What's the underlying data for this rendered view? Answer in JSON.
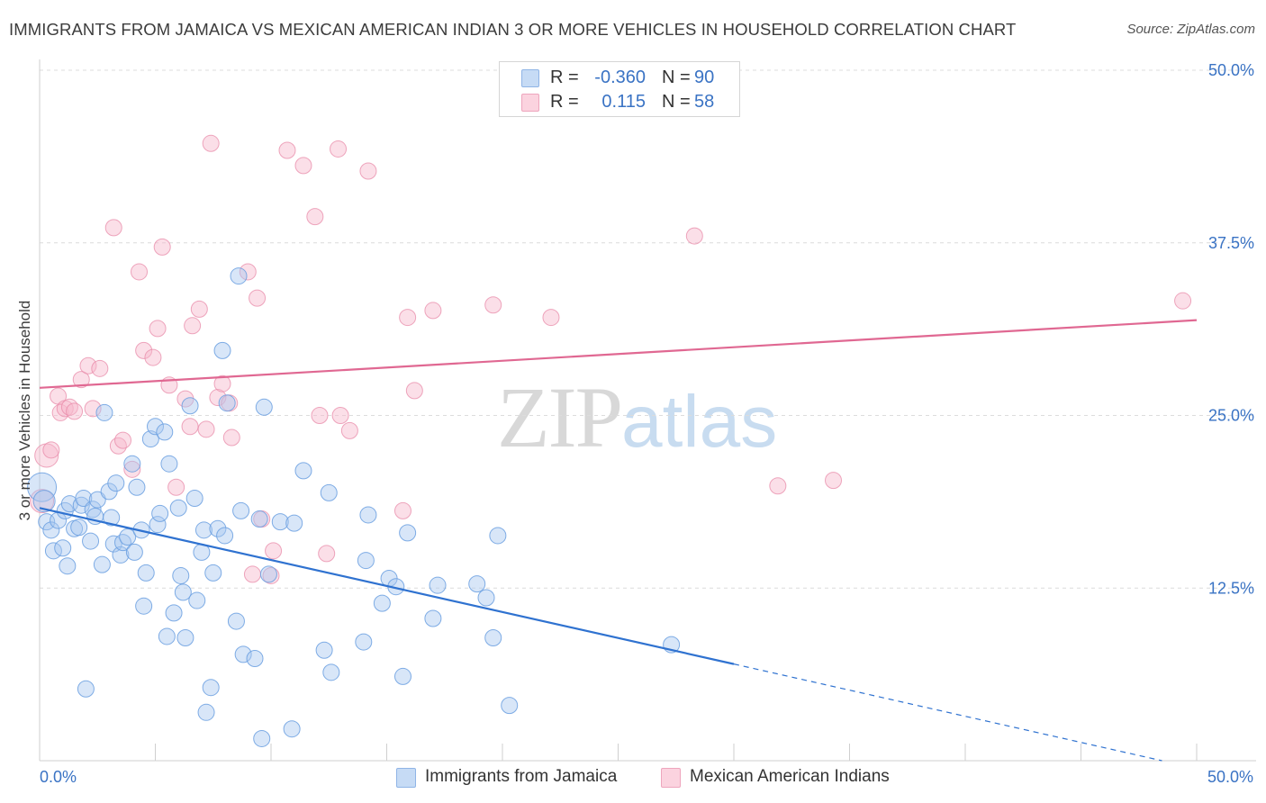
{
  "title": "IMMIGRANTS FROM JAMAICA VS MEXICAN AMERICAN INDIAN 3 OR MORE VEHICLES IN HOUSEHOLD CORRELATION CHART",
  "source": "Source: ZipAtlas.com",
  "watermark": {
    "zip": "ZIP",
    "atlas": "atlas"
  },
  "legend": {
    "rows": [
      {
        "r_label": "R =",
        "r_value": "-0.360",
        "n_label": "N =",
        "n_value": "90",
        "color": "#a9c8f0"
      },
      {
        "r_label": "R =",
        "r_value": "0.115",
        "n_label": "N =",
        "n_value": "58",
        "color": "#f6b8cc"
      }
    ]
  },
  "bottom_legend": [
    "Immigrants from Jamaica",
    "Mexican American Indians"
  ],
  "chart_data": {
    "type": "scatter",
    "title": "IMMIGRANTS FROM JAMAICA VS MEXICAN AMERICAN INDIAN 3 OR MORE VEHICLES IN HOUSEHOLD CORRELATION CHART",
    "xlabel": "",
    "ylabel": "3 or more Vehicles in Household",
    "xlim": [
      0,
      50
    ],
    "ylim": [
      0,
      50
    ],
    "x_tick_labels": [
      "0.0%",
      "50.0%"
    ],
    "y_ticks": [
      12.5,
      25.0,
      37.5,
      50.0
    ],
    "y_tick_labels": [
      "12.5%",
      "25.0%",
      "37.5%",
      "50.0%"
    ],
    "grid": true,
    "legend_position": "top-center",
    "series": [
      {
        "name": "Immigrants from Jamaica",
        "color": "#6a9fe0",
        "fill": "#a9c8f0",
        "trend": {
          "x0": 0,
          "y0": 18.3,
          "x1": 30,
          "y1": 7.0,
          "dashed_to_x": 48.5,
          "dashed_to_y": 0
        },
        "points": [
          [
            0.1,
            19.8
          ],
          [
            0.2,
            18.8
          ],
          [
            0.3,
            17.3
          ],
          [
            0.5,
            16.7
          ],
          [
            0.6,
            15.2
          ],
          [
            0.8,
            17.4
          ],
          [
            1.0,
            15.4
          ],
          [
            1.1,
            18.1
          ],
          [
            1.2,
            14.1
          ],
          [
            1.3,
            18.6
          ],
          [
            1.5,
            16.8
          ],
          [
            1.7,
            16.9
          ],
          [
            1.8,
            18.5
          ],
          [
            1.9,
            19.0
          ],
          [
            2.0,
            5.2
          ],
          [
            2.2,
            15.9
          ],
          [
            2.3,
            18.2
          ],
          [
            2.4,
            17.7
          ],
          [
            2.5,
            18.9
          ],
          [
            2.7,
            14.2
          ],
          [
            2.8,
            25.2
          ],
          [
            3.0,
            19.5
          ],
          [
            3.1,
            17.6
          ],
          [
            3.2,
            15.7
          ],
          [
            3.3,
            20.1
          ],
          [
            3.5,
            14.9
          ],
          [
            3.6,
            15.8
          ],
          [
            3.8,
            16.2
          ],
          [
            4.0,
            21.5
          ],
          [
            4.1,
            15.1
          ],
          [
            4.2,
            19.8
          ],
          [
            4.4,
            16.7
          ],
          [
            4.5,
            11.2
          ],
          [
            4.6,
            13.6
          ],
          [
            4.8,
            23.3
          ],
          [
            5.0,
            24.2
          ],
          [
            5.1,
            17.1
          ],
          [
            5.2,
            17.9
          ],
          [
            5.4,
            23.8
          ],
          [
            5.5,
            9.0
          ],
          [
            5.6,
            21.5
          ],
          [
            5.8,
            10.7
          ],
          [
            6.0,
            18.3
          ],
          [
            6.1,
            13.4
          ],
          [
            6.2,
            12.2
          ],
          [
            6.3,
            8.9
          ],
          [
            6.5,
            25.7
          ],
          [
            6.7,
            19.0
          ],
          [
            6.8,
            11.6
          ],
          [
            7.0,
            15.1
          ],
          [
            7.1,
            16.7
          ],
          [
            7.2,
            3.5
          ],
          [
            7.4,
            5.3
          ],
          [
            7.5,
            13.6
          ],
          [
            7.7,
            16.8
          ],
          [
            7.9,
            29.7
          ],
          [
            8.0,
            16.3
          ],
          [
            8.1,
            25.9
          ],
          [
            8.5,
            10.1
          ],
          [
            8.6,
            35.1
          ],
          [
            8.7,
            18.1
          ],
          [
            8.8,
            7.7
          ],
          [
            9.3,
            7.4
          ],
          [
            9.5,
            17.5
          ],
          [
            9.6,
            1.6
          ],
          [
            9.7,
            25.6
          ],
          [
            9.9,
            13.5
          ],
          [
            10.4,
            17.3
          ],
          [
            10.9,
            2.3
          ],
          [
            11.0,
            17.2
          ],
          [
            11.4,
            21.0
          ],
          [
            12.3,
            8.0
          ],
          [
            12.5,
            19.4
          ],
          [
            12.6,
            6.4
          ],
          [
            14.0,
            8.6
          ],
          [
            14.1,
            14.5
          ],
          [
            14.2,
            17.8
          ],
          [
            14.8,
            11.4
          ],
          [
            15.1,
            13.2
          ],
          [
            15.4,
            12.6
          ],
          [
            15.7,
            6.1
          ],
          [
            15.9,
            16.5
          ],
          [
            17.0,
            10.3
          ],
          [
            17.2,
            12.7
          ],
          [
            18.9,
            12.8
          ],
          [
            19.3,
            11.8
          ],
          [
            19.6,
            8.9
          ],
          [
            19.8,
            16.3
          ],
          [
            20.3,
            4.0
          ],
          [
            27.3,
            8.4
          ]
        ]
      },
      {
        "name": "Mexican American Indians",
        "color": "#e88aa8",
        "fill": "#f6b8cc",
        "trend": {
          "x0": 0,
          "y0": 27.0,
          "x1": 50,
          "y1": 31.9
        },
        "points": [
          [
            0.1,
            18.8
          ],
          [
            0.3,
            22.1
          ],
          [
            0.5,
            22.5
          ],
          [
            0.8,
            26.4
          ],
          [
            0.9,
            25.2
          ],
          [
            1.1,
            25.5
          ],
          [
            1.3,
            25.6
          ],
          [
            1.5,
            25.3
          ],
          [
            1.8,
            27.6
          ],
          [
            2.1,
            28.6
          ],
          [
            2.3,
            25.5
          ],
          [
            2.6,
            28.4
          ],
          [
            3.2,
            38.6
          ],
          [
            3.4,
            22.8
          ],
          [
            3.6,
            23.2
          ],
          [
            4.0,
            21.1
          ],
          [
            4.3,
            35.4
          ],
          [
            4.5,
            29.7
          ],
          [
            4.9,
            29.2
          ],
          [
            5.1,
            31.3
          ],
          [
            5.3,
            37.2
          ],
          [
            5.6,
            27.2
          ],
          [
            5.9,
            19.8
          ],
          [
            6.3,
            26.2
          ],
          [
            6.5,
            24.2
          ],
          [
            6.6,
            31.5
          ],
          [
            6.9,
            32.7
          ],
          [
            7.2,
            24.0
          ],
          [
            7.4,
            44.7
          ],
          [
            7.7,
            26.3
          ],
          [
            7.9,
            27.3
          ],
          [
            8.2,
            25.9
          ],
          [
            8.3,
            23.4
          ],
          [
            9.0,
            35.4
          ],
          [
            9.2,
            13.5
          ],
          [
            9.4,
            33.5
          ],
          [
            9.6,
            17.5
          ],
          [
            10.0,
            13.4
          ],
          [
            10.1,
            15.2
          ],
          [
            10.7,
            44.2
          ],
          [
            11.4,
            43.1
          ],
          [
            11.9,
            39.4
          ],
          [
            12.1,
            25.0
          ],
          [
            12.4,
            15.0
          ],
          [
            12.9,
            44.3
          ],
          [
            13.0,
            25.0
          ],
          [
            13.4,
            23.9
          ],
          [
            14.2,
            42.7
          ],
          [
            15.7,
            18.1
          ],
          [
            15.9,
            32.1
          ],
          [
            16.2,
            26.8
          ],
          [
            17.0,
            32.6
          ],
          [
            19.6,
            33.0
          ],
          [
            22.1,
            32.1
          ],
          [
            28.3,
            38.0
          ],
          [
            31.9,
            19.9
          ],
          [
            34.3,
            20.3
          ],
          [
            49.4,
            33.3
          ]
        ]
      }
    ]
  }
}
